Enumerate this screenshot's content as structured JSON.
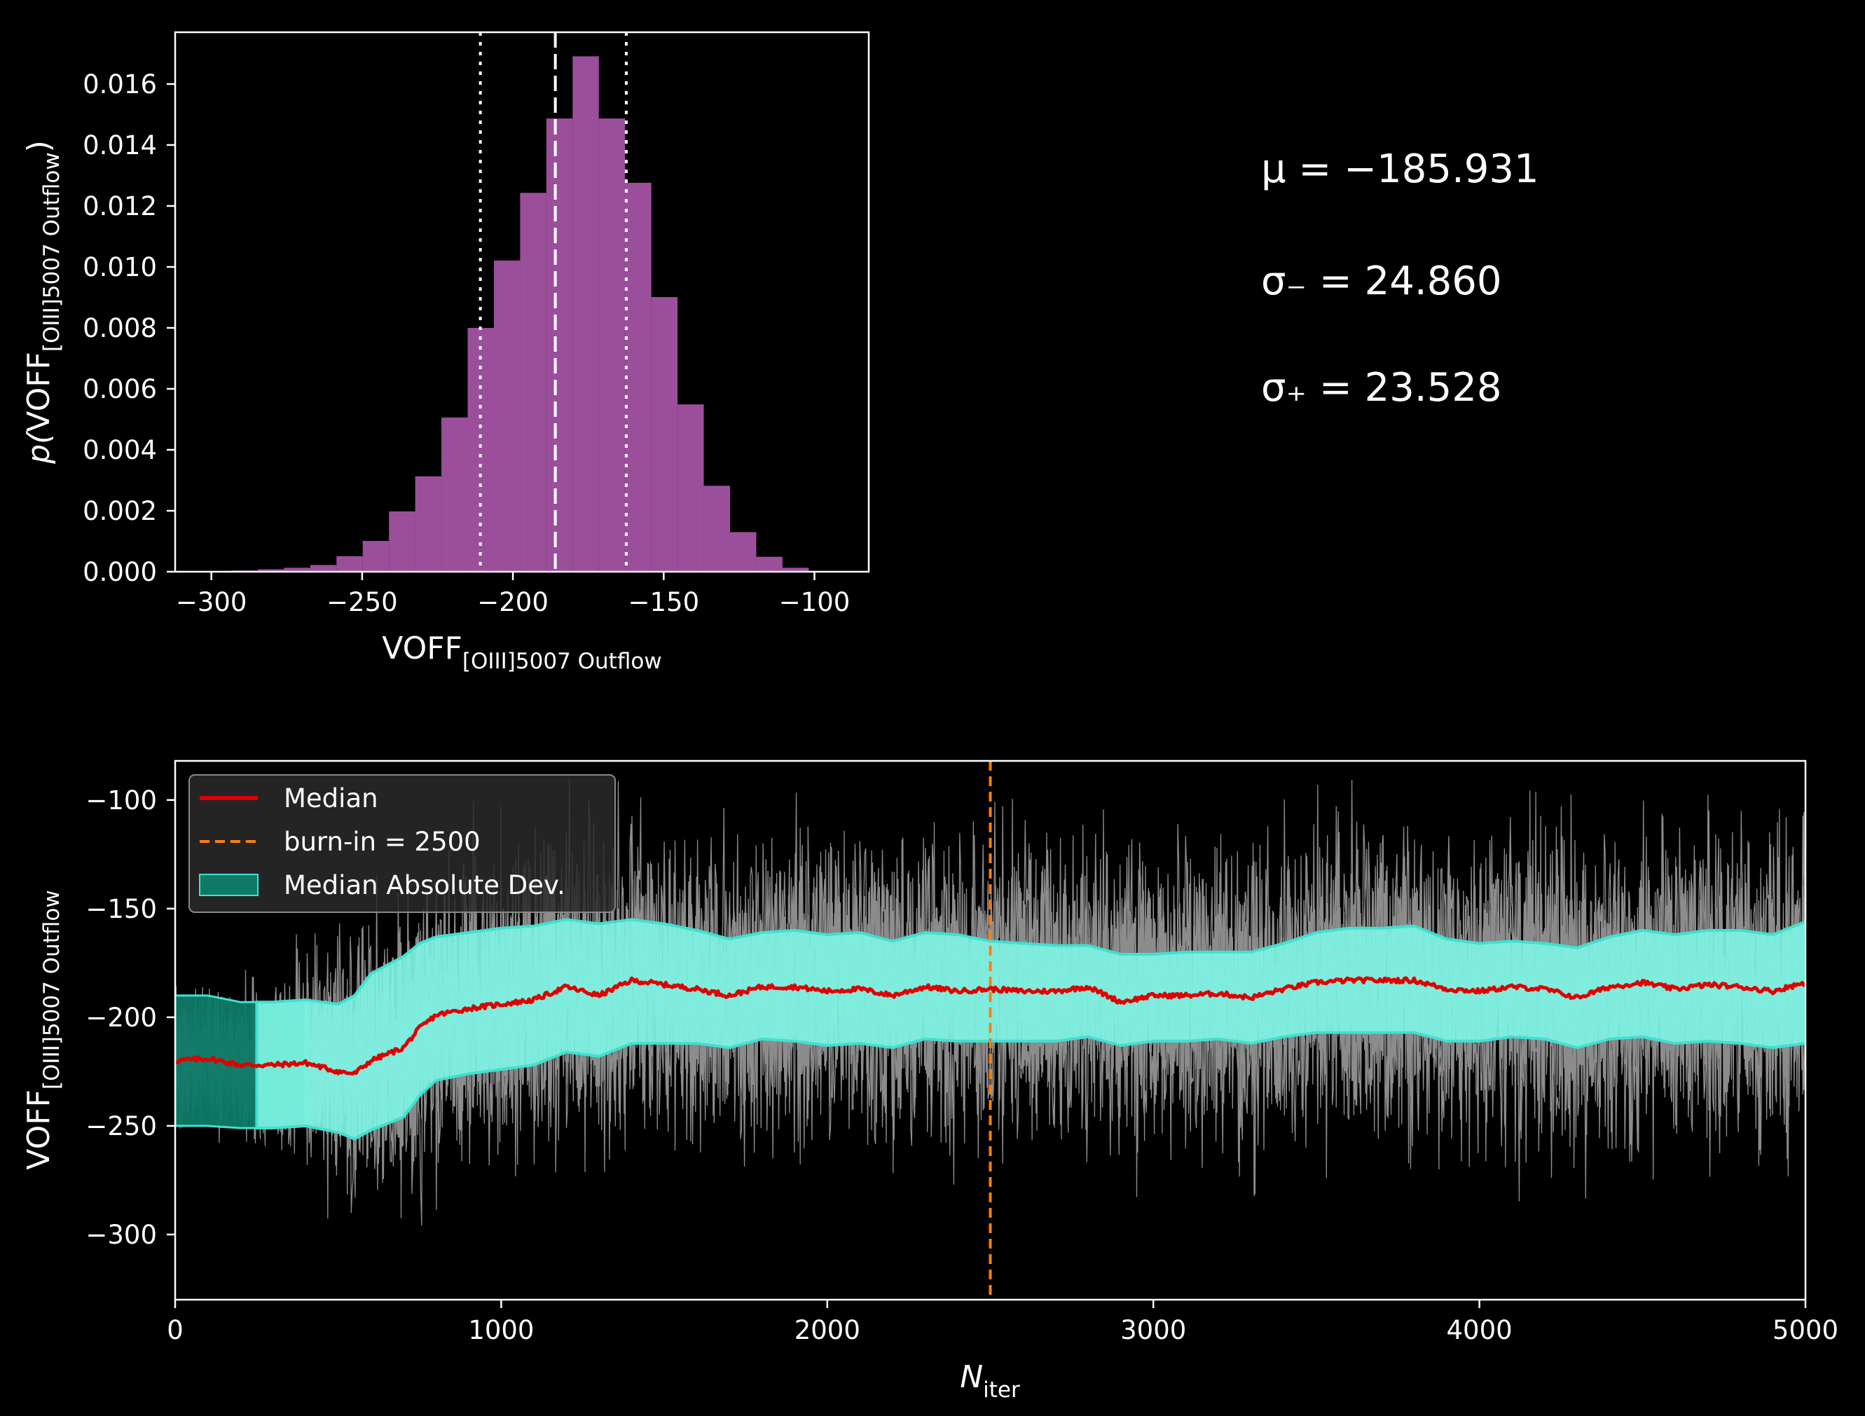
{
  "chart_data": [
    {
      "type": "bar",
      "panel": "histogram",
      "xlabel_main": "VOFF",
      "xlabel_sub": "[OIII]5007 Outflow",
      "ylabel_prefix": "p(",
      "ylabel_main": "VOFF",
      "ylabel_sub": "[OIII]5007 Outflow",
      "ylabel_suffix": ")",
      "xlim": [
        -312,
        -82
      ],
      "ylim": [
        0,
        0.0177
      ],
      "xticks": [
        -300,
        -250,
        -200,
        -150,
        -100
      ],
      "xtick_labels": [
        "−300",
        "−250",
        "−200",
        "−150",
        "−100"
      ],
      "yticks": [
        0.0,
        0.002,
        0.004,
        0.006,
        0.008,
        0.01,
        0.012,
        0.014,
        0.016
      ],
      "ytick_labels": [
        "0.000",
        "0.002",
        "0.004",
        "0.006",
        "0.008",
        "0.010",
        "0.012",
        "0.014",
        "0.016"
      ],
      "bin_width": 8.7,
      "bin_left_edges": [
        -302.0,
        -293.3,
        -284.6,
        -275.9,
        -267.2,
        -258.5,
        -249.8,
        -241.1,
        -232.4,
        -223.7,
        -215.0,
        -206.3,
        -197.6,
        -188.9,
        -180.2,
        -171.5,
        -162.8,
        -154.1,
        -145.4,
        -136.7,
        -128.0,
        -119.3,
        -110.6
      ],
      "values": [
        2e-05,
        4e-05,
        8e-05,
        0.00013,
        0.00022,
        0.00051,
        0.00101,
        0.00198,
        0.00313,
        0.00506,
        0.008,
        0.01021,
        0.01243,
        0.01487,
        0.01691,
        0.01487,
        0.01276,
        0.00901,
        0.00549,
        0.00282,
        0.0013,
        0.00049,
        0.00013
      ],
      "bar_color": "#9b4f9b",
      "median": -185.931,
      "lower": -210.791,
      "upper": -162.403
    },
    {
      "type": "line",
      "panel": "chain",
      "xlabel_main": "N",
      "xlabel_sub": "iter",
      "ylabel_main": "VOFF",
      "ylabel_sub": "[OIII]5007 Outflow",
      "xlim": [
        0,
        5000
      ],
      "ylim": [
        -330,
        -82
      ],
      "xticks": [
        0,
        1000,
        2000,
        3000,
        4000,
        5000
      ],
      "xtick_labels": [
        "0",
        "1000",
        "2000",
        "3000",
        "4000",
        "5000"
      ],
      "yticks": [
        -100,
        -150,
        -200,
        -250,
        -300
      ],
      "ytick_labels": [
        "−100",
        "−150",
        "−200",
        "−250",
        "−300"
      ],
      "burn_in": 2500,
      "median_x": [
        0,
        100,
        200,
        300,
        400,
        500,
        550,
        600,
        700,
        750,
        800,
        900,
        1000,
        1100,
        1200,
        1300,
        1400,
        1500,
        1600,
        1700,
        1800,
        1900,
        2000,
        2100,
        2200,
        2300,
        2400,
        2500,
        2600,
        2700,
        2800,
        2900,
        3000,
        3100,
        3200,
        3300,
        3400,
        3500,
        3600,
        3700,
        3800,
        3900,
        4000,
        4100,
        4200,
        4300,
        4400,
        4500,
        4600,
        4700,
        4800,
        4900,
        5000
      ],
      "median_y": [
        -220,
        -219,
        -222,
        -222,
        -221,
        -225,
        -226,
        -220,
        -214,
        -205,
        -199,
        -196,
        -194,
        -192,
        -186,
        -190,
        -183,
        -185,
        -187,
        -190,
        -186,
        -186,
        -188,
        -187,
        -190,
        -186,
        -188,
        -187,
        -188,
        -188,
        -186,
        -193,
        -190,
        -190,
        -189,
        -191,
        -187,
        -184,
        -183,
        -183,
        -183,
        -187,
        -188,
        -186,
        -187,
        -191,
        -186,
        -184,
        -187,
        -185,
        -186,
        -188,
        -184
      ],
      "mad_upper": [
        -190,
        -190,
        -193,
        -193,
        -192,
        -194,
        -190,
        -180,
        -172,
        -166,
        -163,
        -161,
        -159,
        -158,
        -155,
        -157,
        -155,
        -157,
        -160,
        -164,
        -161,
        -160,
        -162,
        -161,
        -165,
        -161,
        -162,
        -165,
        -166,
        -167,
        -167,
        -171,
        -171,
        -170,
        -170,
        -170,
        -166,
        -161,
        -159,
        -159,
        -158,
        -164,
        -166,
        -165,
        -166,
        -168,
        -163,
        -160,
        -162,
        -160,
        -160,
        -162,
        -156
      ],
      "mad_lower": [
        -250,
        -250,
        -251,
        -251,
        -250,
        -253,
        -256,
        -252,
        -246,
        -236,
        -229,
        -226,
        -224,
        -222,
        -216,
        -218,
        -212,
        -212,
        -212,
        -214,
        -210,
        -211,
        -213,
        -212,
        -214,
        -210,
        -211,
        -211,
        -211,
        -211,
        -209,
        -213,
        -211,
        -211,
        -210,
        -212,
        -209,
        -207,
        -207,
        -207,
        -207,
        -211,
        -211,
        -209,
        -210,
        -214,
        -210,
        -209,
        -212,
        -211,
        -212,
        -214,
        -212
      ],
      "walker_spread": [
        30,
        30,
        30,
        32,
        42,
        50,
        55,
        58,
        60,
        62,
        63,
        63,
        63,
        63,
        62,
        62,
        62,
        62,
        62,
        62,
        62,
        62,
        62,
        62,
        62,
        62,
        62,
        62,
        62,
        62,
        62,
        62,
        62,
        62,
        62,
        62,
        62,
        62,
        62,
        62,
        62,
        62,
        62,
        62,
        62,
        62,
        62,
        62,
        62,
        62,
        62,
        62,
        62
      ],
      "series": [
        {
          "name": "Median",
          "color": "#e00000"
        },
        {
          "name": "burn-in = 2500",
          "color": "#ff7f0e"
        },
        {
          "name": "Median Absolute Dev.",
          "color": "#40e0d0"
        }
      ]
    }
  ],
  "stats": {
    "mu": "μ = −185.931",
    "sigma_minus": "σ₋ = 24.860",
    "sigma_plus": "σ₊ = 23.528"
  }
}
